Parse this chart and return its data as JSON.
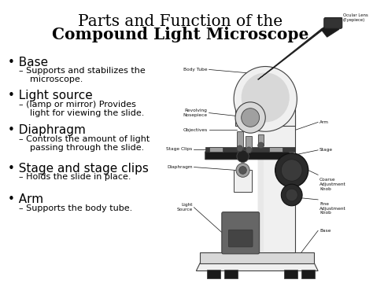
{
  "title_line1": "Parts and Function of the",
  "title_line2": "Compound Light Microscope",
  "title_fontsize1": 14.5,
  "title_fontsize2": 14.5,
  "bg_color": "#ffffff",
  "text_color": "#000000",
  "bullet_items": [
    {
      "bullet": "Base",
      "sub": "Supports and stabilizes the\nmicroscope.",
      "bullet_fs": 11,
      "sub_fs": 8
    },
    {
      "bullet": "Light source",
      "sub": "(lamp or mirror) Provides\nlight for viewing the slide.",
      "bullet_fs": 11,
      "sub_fs": 8
    },
    {
      "bullet": "Diaphragm",
      "sub": "Controls the amount of light\npassing through the slide.",
      "bullet_fs": 11,
      "sub_fs": 8
    },
    {
      "bullet": "Stage and stage clips",
      "sub": "Holds the slide in place.",
      "bullet_fs": 11,
      "sub_fs": 8
    },
    {
      "bullet": "Arm",
      "sub": "Supports the body tube.",
      "bullet_fs": 11,
      "sub_fs": 8
    }
  ],
  "label_fontsize": 4.2,
  "line_lw": 0.5,
  "label_color": "#111111"
}
